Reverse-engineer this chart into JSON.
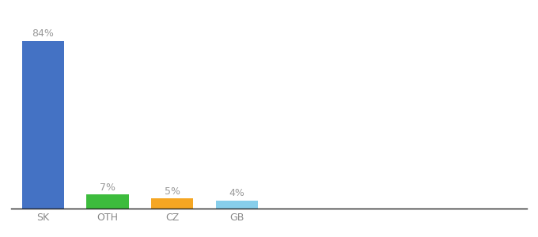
{
  "categories": [
    "SK",
    "OTH",
    "CZ",
    "GB"
  ],
  "values": [
    84,
    7,
    5,
    4
  ],
  "labels": [
    "84%",
    "7%",
    "5%",
    "4%"
  ],
  "bar_colors": [
    "#4472c4",
    "#3dbc3d",
    "#f5a623",
    "#87ceeb"
  ],
  "background_color": "#ffffff",
  "ylim": [
    0,
    95
  ],
  "bar_width": 0.65,
  "label_fontsize": 9,
  "tick_fontsize": 9,
  "label_color": "#999999",
  "tick_color": "#888888"
}
